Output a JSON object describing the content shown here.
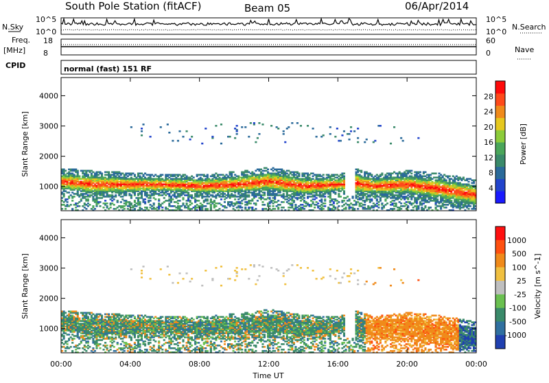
{
  "header": {
    "station": "South Pole Station (fitACF)",
    "beam": "Beam 05",
    "date": "06/Apr/2014"
  },
  "strip_panels": {
    "nsky_label": "N.Sky",
    "nsearch_label": "N.Search",
    "nsky_ticks": [
      "10^5",
      "10^0"
    ],
    "nsearch_ticks": [
      "10^5",
      "10^0"
    ],
    "freq_label_1": "Freq.",
    "freq_label_2": "[MHz]",
    "freq_ticks": [
      "18",
      "8"
    ],
    "nave_label": "Nave",
    "nave_ticks": [
      "60",
      "0"
    ],
    "cpid_label": "CPID",
    "cpid_text": "normal (fast) 151 RF"
  },
  "chart_data": [
    {
      "type": "heatmap",
      "panel": "power",
      "ylabel": "Slant Range [km]",
      "xlabel": "Time UT",
      "x_ticks": [
        "00:00",
        "04:00",
        "08:00",
        "12:00",
        "16:00",
        "20:00",
        "00:00"
      ],
      "x_range_hours": [
        0,
        24
      ],
      "ylim": [
        200,
        4600
      ],
      "y_ticks": [
        1000,
        2000,
        3000,
        4000
      ],
      "colorbar": {
        "label": "Power [dB]",
        "ticks": [
          4,
          8,
          12,
          16,
          20,
          24,
          28
        ],
        "range": [
          0,
          30
        ],
        "colors": [
          "#1a1aff",
          "#2244cc",
          "#2a6a9a",
          "#3a8a6a",
          "#4aa65a",
          "#8ccc3a",
          "#e6c81e",
          "#f08a1a",
          "#ff4a1a",
          "#ff0a0a"
        ]
      },
      "main_band": [
        {
          "t": 0,
          "center": 1150,
          "width": 500
        },
        {
          "t": 2,
          "center": 1050,
          "width": 550
        },
        {
          "t": 4,
          "center": 1050,
          "width": 450
        },
        {
          "t": 6,
          "center": 1050,
          "width": 400
        },
        {
          "t": 8,
          "center": 1000,
          "width": 450
        },
        {
          "t": 10,
          "center": 1050,
          "width": 500
        },
        {
          "t": 12,
          "center": 1150,
          "width": 550
        },
        {
          "t": 14,
          "center": 1000,
          "width": 500
        },
        {
          "t": 16,
          "center": 1050,
          "width": 400
        },
        {
          "t": 17,
          "center": 1100,
          "width": 600
        },
        {
          "t": 18,
          "center": 1000,
          "width": 450
        },
        {
          "t": 20,
          "center": 1050,
          "width": 550
        },
        {
          "t": 22,
          "center": 900,
          "width": 600
        },
        {
          "t": 24,
          "center": 700,
          "width": 600
        }
      ]
    },
    {
      "type": "heatmap",
      "panel": "velocity",
      "ylabel": "Slant Range [km]",
      "xlabel": "Time UT",
      "x_ticks": [
        "00:00",
        "04:00",
        "08:00",
        "12:00",
        "16:00",
        "20:00",
        "00:00"
      ],
      "x_range_hours": [
        0,
        24
      ],
      "ylim": [
        200,
        4600
      ],
      "y_ticks": [
        1000,
        2000,
        3000,
        4000
      ],
      "colorbar": {
        "label": "Velocity [m s^-1]",
        "ticks": [
          "1000",
          "500",
          "100",
          "25",
          "-25",
          "-100",
          "-500",
          "-1000"
        ],
        "colors": [
          "#2040b0",
          "#3070a0",
          "#3a8a6a",
          "#6ac050",
          "#bfbfbf",
          "#f0c040",
          "#f08a1a",
          "#ff5010",
          "#ff1010"
        ]
      }
    }
  ]
}
